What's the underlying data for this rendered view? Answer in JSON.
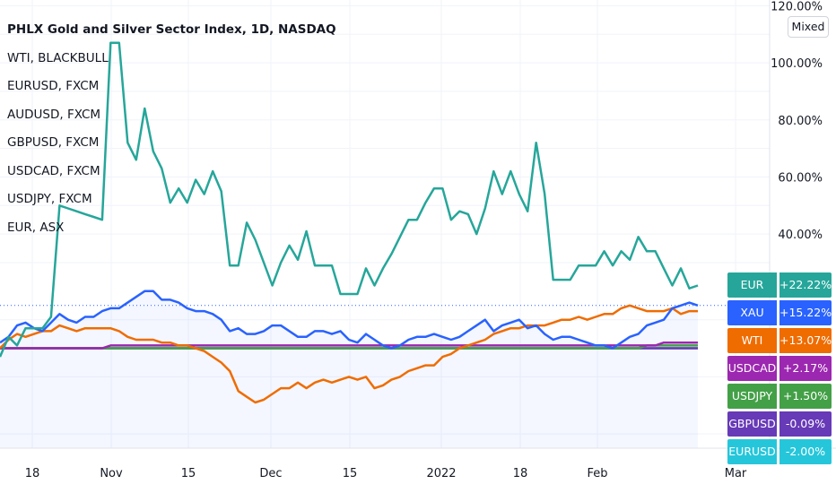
{
  "chart_data": {
    "type": "line",
    "title": "PHLX Gold and Silver Sector Index, 1D, NASDAQ",
    "legend": [
      "WTI, BLACKBULL",
      "EURUSD, FXCM",
      "AUDUSD, FXCM",
      "GBPUSD, FXCM",
      "USDCAD, FXCM",
      "USDJPY, FXCM",
      "EUR, ASX"
    ],
    "y_axis": {
      "ticks": [
        40,
        60,
        80,
        100,
        120
      ],
      "tick_labels": [
        "40.00%",
        "60.00%",
        "80.00%",
        "100.00%",
        "120.00%"
      ],
      "ylim": [
        -35,
        122
      ]
    },
    "x_axis": {
      "tick_labels": [
        "18",
        "Nov",
        "15",
        "Dec",
        "15",
        "2022",
        "18",
        "Feb",
        "Mar"
      ]
    },
    "grid": true,
    "scale_mode_label": "Mixed",
    "series": [
      {
        "name": "EUR",
        "color": "#26a69a",
        "values": [
          -3,
          4,
          1,
          7,
          7,
          7,
          11,
          50,
          49,
          48,
          47,
          46,
          45,
          107,
          107,
          72,
          66,
          84,
          69,
          63,
          51,
          56,
          51,
          59,
          54,
          62,
          55,
          29,
          29,
          44,
          38,
          30,
          22,
          30,
          36,
          31,
          41,
          29,
          29,
          29,
          19,
          19,
          19,
          28,
          22,
          28,
          33,
          39,
          45,
          45,
          51,
          56,
          56,
          45,
          48,
          47,
          40,
          49,
          62,
          54,
          62,
          54,
          48,
          72,
          54,
          24,
          24,
          24,
          29,
          29,
          29,
          34,
          29,
          34,
          31,
          39,
          34,
          34,
          28,
          22,
          28,
          21,
          22
        ]
      },
      {
        "name": "XAU",
        "color": "#2962ff",
        "values": [
          2,
          4,
          8,
          9,
          7,
          6,
          9,
          12,
          10,
          9,
          11,
          11,
          13,
          14,
          14,
          16,
          18,
          20,
          20,
          17,
          17,
          16,
          14,
          13,
          13,
          12,
          10,
          6,
          7,
          5,
          5,
          6,
          8,
          8,
          6,
          4,
          4,
          6,
          6,
          5,
          6,
          3,
          2,
          5,
          3,
          1,
          0,
          1,
          3,
          4,
          4,
          5,
          4,
          3,
          4,
          6,
          8,
          10,
          6,
          8,
          9,
          10,
          7,
          8,
          5,
          3,
          4,
          4,
          3,
          2,
          1,
          1,
          0,
          2,
          4,
          5,
          8,
          9,
          10,
          14,
          15,
          16,
          15
        ]
      },
      {
        "name": "WTI",
        "color": "#ef6c00",
        "values": [
          0,
          3,
          5,
          4,
          5,
          6,
          6,
          8,
          7,
          6,
          7,
          7,
          7,
          7,
          6,
          4,
          3,
          3,
          3,
          2,
          2,
          1,
          1,
          0,
          -1,
          -3,
          -5,
          -8,
          -15,
          -17,
          -19,
          -18,
          -16,
          -14,
          -14,
          -12,
          -14,
          -12,
          -11,
          -12,
          -11,
          -10,
          -11,
          -10,
          -14,
          -13,
          -11,
          -10,
          -8,
          -7,
          -6,
          -6,
          -3,
          -2,
          0,
          1,
          2,
          3,
          5,
          6,
          7,
          7,
          8,
          8,
          8,
          9,
          10,
          10,
          11,
          10,
          11,
          12,
          12,
          14,
          15,
          14,
          13,
          13,
          13,
          14,
          12,
          13,
          13
        ]
      },
      {
        "name": "USDCAD",
        "color": "#9c27b0",
        "values": [
          0,
          0,
          0,
          0,
          0,
          0,
          0,
          0,
          0,
          0,
          0,
          0,
          0,
          1,
          1,
          1,
          1,
          1,
          1,
          1,
          1,
          1,
          1,
          1,
          1,
          1,
          1,
          1,
          1,
          1,
          1,
          1,
          1,
          1,
          1,
          1,
          1,
          1,
          1,
          1,
          1,
          1,
          1,
          1,
          1,
          1,
          1,
          1,
          1,
          1,
          1,
          1,
          1,
          1,
          1,
          1,
          1,
          1,
          1,
          1,
          1,
          1,
          1,
          1,
          1,
          1,
          1,
          1,
          1,
          1,
          1,
          1,
          1,
          1,
          1,
          1,
          1,
          1,
          2,
          2,
          2,
          2,
          2
        ]
      },
      {
        "name": "USDJPY",
        "color": "#43a047",
        "values": [
          0,
          0,
          0,
          0,
          0,
          0,
          0,
          0,
          0,
          0,
          0,
          0,
          0,
          0,
          0,
          0,
          0,
          0,
          0,
          0,
          0,
          0,
          0,
          0,
          0,
          0,
          0,
          0,
          0,
          0,
          0,
          0,
          0,
          0,
          0,
          0,
          0,
          0,
          0,
          0,
          0,
          0,
          0,
          0,
          0,
          0,
          0,
          0,
          0,
          0,
          0,
          0,
          0,
          0,
          0,
          0,
          0,
          0,
          0,
          0,
          0,
          0,
          0,
          0,
          0,
          0,
          0,
          0,
          0,
          0,
          0,
          0,
          0,
          0,
          0,
          0,
          1,
          1,
          1,
          1,
          1,
          1,
          1
        ]
      },
      {
        "name": "GBPUSD",
        "color": "#673ab7",
        "values": [
          0,
          0,
          0,
          0,
          0,
          0,
          0,
          0,
          0,
          0,
          0,
          0,
          0,
          0,
          0,
          0,
          0,
          0,
          0,
          0,
          0,
          0,
          0,
          0,
          0,
          0,
          0,
          0,
          0,
          0,
          0,
          0,
          0,
          0,
          0,
          0,
          0,
          0,
          0,
          0,
          0,
          0,
          0,
          0,
          0,
          0,
          0,
          0,
          0,
          0,
          0,
          0,
          0,
          0,
          0,
          0,
          0,
          0,
          0,
          0,
          0,
          0,
          0,
          0,
          0,
          0,
          0,
          0,
          0,
          0,
          0,
          0,
          0,
          0,
          0,
          0,
          0,
          0,
          0,
          0,
          0,
          0,
          0
        ]
      },
      {
        "name": "EURUSD",
        "color": "#26c6da",
        "values": [
          0,
          0,
          0,
          0,
          0,
          0,
          0,
          0,
          0,
          0,
          0,
          0,
          0,
          0,
          0,
          0,
          0,
          0,
          0,
          0,
          0,
          0,
          0,
          0,
          0,
          0,
          0,
          0,
          0,
          0,
          0,
          0,
          0,
          0,
          0,
          0,
          0,
          0,
          0,
          0,
          0,
          0,
          0,
          0,
          0,
          0,
          0,
          0,
          0,
          0,
          0,
          0,
          0,
          0,
          0,
          0,
          0,
          0,
          0,
          0,
          0,
          0,
          0,
          0,
          0,
          0,
          0,
          0,
          0,
          0,
          0,
          0,
          0,
          0,
          0,
          0,
          0,
          0,
          0,
          0,
          0,
          0,
          0
        ]
      },
      {
        "name": "AUDUSD",
        "color": "#f9a825",
        "values": [
          0,
          0,
          0,
          0,
          0,
          0,
          0,
          0,
          0,
          0,
          0,
          0,
          0,
          0,
          0,
          0,
          0,
          0,
          0,
          0,
          0,
          0,
          0,
          0,
          0,
          0,
          0,
          0,
          0,
          0,
          0,
          0,
          0,
          0,
          0,
          0,
          0,
          0,
          0,
          0,
          0,
          0,
          0,
          0,
          0,
          0,
          0,
          0,
          0,
          0,
          0,
          0,
          0,
          0,
          0,
          0,
          0,
          0,
          0,
          0,
          0,
          0,
          0,
          0,
          0,
          0,
          0,
          0,
          0,
          0,
          0,
          0,
          0,
          0,
          0,
          0,
          0,
          0,
          0,
          0,
          0,
          0,
          0
        ]
      }
    ],
    "badges": [
      {
        "symbol": "EUR",
        "value": "+22.22%",
        "color": "#26a69a"
      },
      {
        "symbol": "XAU",
        "value": "+15.22%",
        "color": "#2962ff"
      },
      {
        "symbol": "WTI",
        "value": "+13.07%",
        "color": "#ef6c00"
      },
      {
        "symbol": "USDCAD",
        "value": "+2.17%",
        "color": "#9c27b0"
      },
      {
        "symbol": "USDJPY",
        "value": "+1.50%",
        "color": "#43a047"
      },
      {
        "symbol": "GBPUSD",
        "value": "-0.09%",
        "color": "#673ab7"
      },
      {
        "symbol": "EURUSD",
        "value": "-2.00%",
        "color": "#26c6da"
      }
    ]
  }
}
